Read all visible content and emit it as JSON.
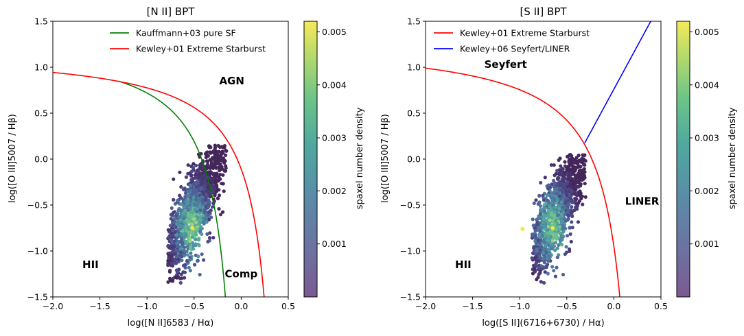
{
  "chart_data": [
    {
      "type": "scatter",
      "title": "[N II] BPT",
      "xlabel": "log([N II]6583 / Hα)",
      "ylabel": "log([O III]5007 / Hβ)",
      "xlim": [
        -2.0,
        0.5
      ],
      "ylim": [
        -1.5,
        1.5
      ],
      "xticks": [
        -2.0,
        -1.5,
        -1.0,
        -0.5,
        0.0,
        0.5
      ],
      "xtick_labels": [
        "−2.0",
        "−1.5",
        "−1.0",
        "−0.5",
        "0.0",
        "0.5"
      ],
      "yticks": [
        -1.5,
        -1.0,
        -0.5,
        0.0,
        0.5,
        1.0,
        1.5
      ],
      "ytick_labels": [
        "−1.5",
        "−1.0",
        "−0.5",
        "0.0",
        "0.5",
        "1.0",
        "1.5"
      ],
      "legend_position": "top-center",
      "lines": [
        {
          "name": "Kauffmann+03 pure SF",
          "color": "#008000",
          "formula": "0.61/(x-0.05)+1.30",
          "x_range": [
            -1.3,
            -0.14
          ]
        },
        {
          "name": "Kewley+01 Extreme Starburst",
          "color": "#ff0000",
          "formula": "0.61/(x-0.47)+1.19",
          "x_range": [
            -2.0,
            0.25
          ]
        }
      ],
      "regions": [
        {
          "label": "AGN",
          "x": -0.1,
          "y": 0.85
        },
        {
          "label": "HII",
          "x": -1.6,
          "y": -1.15
        },
        {
          "label": "Comp",
          "x": 0.0,
          "y": -1.25
        }
      ],
      "scatter_cloud": {
        "center": [
          -0.5,
          -0.55
        ],
        "x_range": [
          -0.78,
          -0.15
        ],
        "y_range": [
          -1.35,
          0.15
        ],
        "hotspot": [
          -0.52,
          -0.75
        ]
      },
      "colorbar": {
        "label": "spaxel number density",
        "range": [
          0.0,
          0.0052
        ],
        "ticks": [
          0.001,
          0.002,
          0.003,
          0.004,
          0.005
        ],
        "tick_labels": [
          "0.001",
          "0.002",
          "0.003",
          "0.004",
          "0.005"
        ],
        "colormap": "viridis"
      }
    },
    {
      "type": "scatter",
      "title": "[S II] BPT",
      "xlabel": "log([S II](6716+6730) / Hα)",
      "ylabel": "log([O III]5007 / Hβ)",
      "xlim": [
        -2.0,
        0.5
      ],
      "ylim": [
        -1.5,
        1.5
      ],
      "xticks": [
        -2.0,
        -1.5,
        -1.0,
        -0.5,
        0.0,
        0.5
      ],
      "xtick_labels": [
        "−2.0",
        "−1.5",
        "−1.0",
        "−0.5",
        "0.0",
        "0.5"
      ],
      "yticks": [
        -1.5,
        -1.0,
        -0.5,
        0.0,
        0.5,
        1.0,
        1.5
      ],
      "ytick_labels": [
        "−1.5",
        "−1.0",
        "−0.5",
        "0.0",
        "0.5",
        "1.0",
        "1.5"
      ],
      "legend_position": "top-left",
      "lines": [
        {
          "name": "Kewley+01 Extreme Starburst",
          "color": "#ff0000",
          "formula": "0.72/(x-0.32)+1.30",
          "x_range": [
            -2.0,
            0.07
          ]
        },
        {
          "name": "Kewley+06 Seyfert/LINER",
          "color": "#0000ff",
          "formula": "1.89*x+0.76",
          "x_range": [
            -0.31,
            0.5
          ]
        }
      ],
      "regions": [
        {
          "label": "Seyfert",
          "x": -1.15,
          "y": 1.03
        },
        {
          "label": "LINER",
          "x": 0.3,
          "y": -0.46
        },
        {
          "label": "HII",
          "x": -1.6,
          "y": -1.15
        }
      ],
      "scatter_cloud": {
        "center": [
          -0.6,
          -0.55
        ],
        "x_range": [
          -0.87,
          -0.3
        ],
        "y_range": [
          -1.35,
          0.05
        ],
        "hotspot": [
          -0.65,
          -0.75
        ],
        "outlier": [
          -0.97,
          -0.76
        ]
      },
      "colorbar": {
        "label": "spaxel number density",
        "range": [
          0.0,
          0.0052
        ],
        "ticks": [
          0.001,
          0.002,
          0.003,
          0.004,
          0.005
        ],
        "tick_labels": [
          "0.001",
          "0.002",
          "0.003",
          "0.004",
          "0.005"
        ],
        "colormap": "viridis"
      }
    }
  ]
}
